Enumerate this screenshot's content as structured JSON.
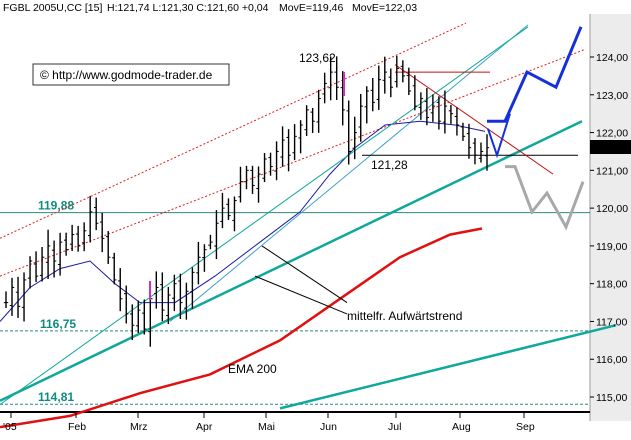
{
  "header": {
    "symbol": "FGBL 2005U,CC [15]",
    "quote": "H:121,74 L:121,30 C:121,60 +0,04",
    "move_e1": "MovE=119,46",
    "move_e2": "MovE=122,03",
    "move_e1_color": "#ff0000",
    "move_e2_color": "#0000ff"
  },
  "copyright": "© http://www.godmode-trader.de",
  "colors": {
    "price_bars": "#000000",
    "ema_200": "#e01010",
    "moving_average": "#1a1aa8",
    "trend_lines": "#0fa89a",
    "forecast_up": "#1530d8",
    "forecast_down": "#a8a8a8",
    "channel_dotted": "#e02020"
  },
  "chart_data": {
    "type": "ohlc",
    "y_range": [
      114.7,
      125.1
    ],
    "y_ticks": [
      "124,00",
      "123,00",
      "122,00",
      "121,00",
      "120,00",
      "119,00",
      "118,00",
      "117,00",
      "116,00",
      "115,00"
    ],
    "x_ticks": [
      "'05",
      "Feb",
      "Mrz",
      "Apr",
      "Mai",
      "Jun",
      "Jul",
      "Aug",
      "Sep"
    ],
    "last_price": "121,60",
    "annotations": {
      "high": "123,62",
      "low": "121,28",
      "trend": "mittelfr. Aufwärtstrend",
      "ema": "EMA 200"
    },
    "levels": [
      {
        "value": 119.88,
        "label": "119,88"
      },
      {
        "value": 116.75,
        "label": "116,75"
      },
      {
        "value": 114.81,
        "label": "114,81"
      }
    ],
    "closes": [
      117.5,
      117.9,
      117.4,
      118.1,
      118.6,
      118.2,
      118.7,
      119.0,
      118.6,
      119.1,
      118.9,
      119.3,
      119.0,
      119.4,
      119.9,
      119.6,
      119.2,
      118.7,
      118.1,
      117.6,
      117.2,
      116.9,
      117.3,
      116.8,
      117.6,
      117.9,
      117.3,
      117.7,
      118.0,
      117.5,
      117.8,
      118.3,
      118.7,
      118.9,
      119.1,
      119.6,
      120.0,
      119.8,
      120.2,
      120.7,
      121.0,
      120.6,
      120.9,
      121.3,
      121.1,
      121.5,
      121.8,
      121.4,
      121.9,
      122.2,
      122.6,
      122.3,
      122.9,
      123.3,
      123.6,
      123.2,
      122.6,
      121.5,
      122.0,
      122.7,
      123.1,
      122.8,
      123.4,
      123.6,
      123.2,
      123.7,
      123.5,
      123.1,
      122.7,
      122.9,
      122.4,
      122.7,
      122.3,
      122.7,
      122.5,
      122.2,
      121.9,
      121.6,
      121.4,
      121.5,
      121.6
    ],
    "ema200": [
      [
        0,
        114.2
      ],
      [
        70,
        114.5
      ],
      [
        140,
        115.1
      ],
      [
        210,
        115.6
      ],
      [
        280,
        116.5
      ],
      [
        340,
        117.6
      ],
      [
        400,
        118.7
      ],
      [
        450,
        119.3
      ],
      [
        482,
        119.46
      ]
    ],
    "moving_average": [
      [
        0,
        117.0
      ],
      [
        30,
        117.9
      ],
      [
        60,
        118.4
      ],
      [
        90,
        118.6
      ],
      [
        115,
        118.0
      ],
      [
        140,
        117.5
      ],
      [
        175,
        117.5
      ],
      [
        215,
        118.2
      ],
      [
        265,
        119.2
      ],
      [
        300,
        119.9
      ],
      [
        330,
        120.9
      ],
      [
        355,
        121.6
      ],
      [
        385,
        122.2
      ],
      [
        420,
        122.3
      ],
      [
        455,
        122.2
      ],
      [
        485,
        122.03
      ]
    ],
    "forecast_up": [
      [
        487,
        122.3
      ],
      [
        505,
        122.3
      ],
      [
        527,
        123.6
      ],
      [
        556,
        123.2
      ],
      [
        581,
        124.8
      ]
    ],
    "forecast_down": [
      [
        505,
        121.1
      ],
      [
        515,
        121.1
      ],
      [
        532,
        119.9
      ],
      [
        547,
        120.4
      ],
      [
        566,
        119.5
      ],
      [
        583,
        120.7
      ]
    ],
    "trend_lines": [
      [
        [
          0,
          114.9
        ],
        [
          582,
          122.3
        ]
      ],
      [
        [
          280,
          114.7
        ],
        [
          616,
          116.9
        ]
      ],
      [
        [
          0,
          114.8
        ],
        [
          528,
          124.8
        ]
      ]
    ],
    "trend_notes": [
      [
        [
          262,
          119.0
        ],
        [
          347,
          117.5
        ]
      ],
      [
        [
          255,
          118.2
        ],
        [
          347,
          117.2
        ]
      ]
    ],
    "channel_dotted": [
      [
        [
          0,
          119.2
        ],
        [
          466,
          124.9
        ]
      ],
      [
        [
          0,
          118.2
        ],
        [
          585,
          124.2
        ]
      ]
    ],
    "resistance": [
      [
        395,
        123.6
      ],
      [
        490,
        123.6
      ]
    ],
    "support": [
      [
        362,
        121.4
      ],
      [
        578,
        121.4
      ]
    ],
    "falling_line": [
      [
        395,
        123.8
      ],
      [
        553,
        120.9
      ]
    ]
  }
}
